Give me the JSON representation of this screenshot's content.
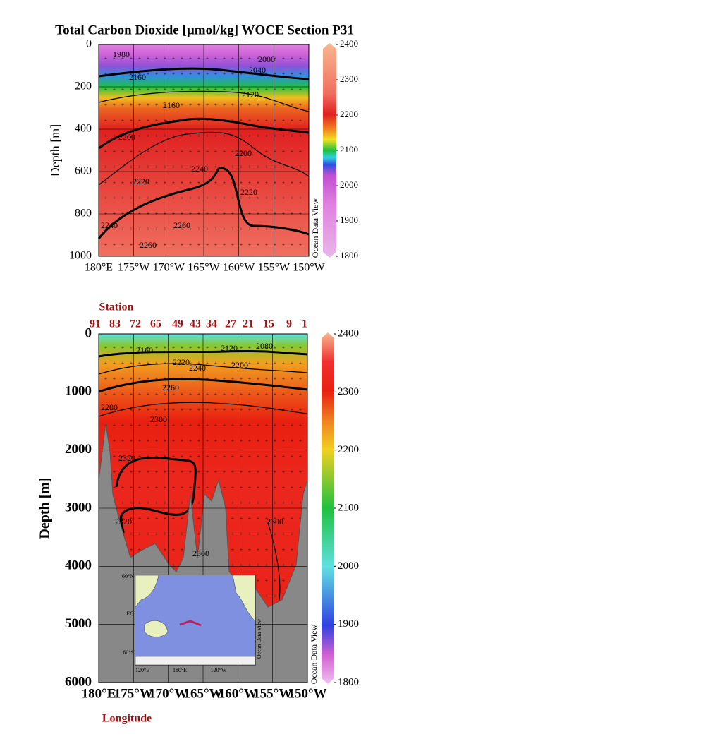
{
  "chart_data": [
    {
      "type": "section",
      "title": "Total Carbon Dioxide [µmol/kg]  WOCE Section P31",
      "ylabel": "Depth [m]",
      "xlim": [
        180,
        210
      ],
      "xticks": [
        {
          "value": 180,
          "label": "180°E"
        },
        {
          "value": 185,
          "label": "175°W"
        },
        {
          "value": 190,
          "label": "170°W"
        },
        {
          "value": 195,
          "label": "165°W"
        },
        {
          "value": 200,
          "label": "160°W"
        },
        {
          "value": 205,
          "label": "155°W"
        },
        {
          "value": 210,
          "label": "150°W"
        }
      ],
      "ylim": [
        0,
        1000
      ],
      "y_inverted": true,
      "yticks": [
        0,
        200,
        400,
        600,
        800,
        1000
      ],
      "clim": [
        1800,
        2400
      ],
      "cticks": [
        1800,
        1900,
        2000,
        2100,
        2200,
        2300,
        2400
      ],
      "colormap": [
        {
          "value": 1800,
          "color": "#e8b8e8"
        },
        {
          "value": 1950,
          "color": "#e080e0"
        },
        {
          "value": 2030,
          "color": "#c050d0"
        },
        {
          "value": 2060,
          "color": "#3050e0"
        },
        {
          "value": 2080,
          "color": "#30d0e0"
        },
        {
          "value": 2100,
          "color": "#20c040"
        },
        {
          "value": 2130,
          "color": "#f0e020"
        },
        {
          "value": 2160,
          "color": "#f08020"
        },
        {
          "value": 2200,
          "color": "#e02020"
        },
        {
          "value": 2260,
          "color": "#f07060"
        },
        {
          "value": 2400,
          "color": "#f8b890"
        }
      ],
      "profile": {
        "depth": [
          0,
          50,
          100,
          150,
          200,
          250,
          300,
          400,
          600,
          800,
          1000
        ],
        "value": [
          1950,
          2000,
          2040,
          2070,
          2100,
          2140,
          2170,
          2200,
          2220,
          2240,
          2260
        ]
      },
      "contour_labels": [
        "1980",
        "2000",
        "2040",
        "2160",
        "2120",
        "2160",
        "2200",
        "2200",
        "2220",
        "2240",
        "2220",
        "2240",
        "2260",
        "2260"
      ],
      "watermark": "Ocean Data View"
    },
    {
      "type": "section",
      "ylabel": "Depth [m]",
      "xlabel": "Longitude",
      "station_title": "Station",
      "stations": [
        "91",
        "83",
        "72",
        "65",
        "49",
        "43",
        "34",
        "27",
        "21",
        "15",
        "9",
        "1"
      ],
      "xlim": [
        180,
        210
      ],
      "xticks": [
        {
          "value": 180,
          "label": "180°E"
        },
        {
          "value": 185,
          "label": "175°W"
        },
        {
          "value": 190,
          "label": "170°W"
        },
        {
          "value": 195,
          "label": "165°W"
        },
        {
          "value": 200,
          "label": "160°W"
        },
        {
          "value": 205,
          "label": "155°W"
        },
        {
          "value": 210,
          "label": "150°W"
        }
      ],
      "ylim": [
        0,
        6000
      ],
      "y_inverted": true,
      "yticks": [
        0,
        1000,
        2000,
        3000,
        4000,
        5000,
        6000
      ],
      "clim": [
        1800,
        2400
      ],
      "cticks": [
        1800,
        1900,
        2000,
        2100,
        2200,
        2300,
        2400
      ],
      "colormap": [
        {
          "value": 1800,
          "color": "#f0c0f0"
        },
        {
          "value": 1850,
          "color": "#d060d0"
        },
        {
          "value": 1900,
          "color": "#3040e0"
        },
        {
          "value": 2000,
          "color": "#60e0e0"
        },
        {
          "value": 2100,
          "color": "#20c040"
        },
        {
          "value": 2200,
          "color": "#f0d020"
        },
        {
          "value": 2250,
          "color": "#f08020"
        },
        {
          "value": 2300,
          "color": "#e82010"
        },
        {
          "value": 2350,
          "color": "#f03030"
        },
        {
          "value": 2400,
          "color": "#f8b890"
        }
      ],
      "profile": {
        "depth": [
          0,
          200,
          500,
          1000,
          1500,
          2500,
          6000
        ],
        "value": [
          2000,
          2150,
          2230,
          2270,
          2300,
          2320,
          2310
        ]
      },
      "contour_labels": [
        "2160",
        "2120",
        "2080",
        "2220",
        "2240",
        "2200",
        "2260",
        "2280",
        "2300",
        "2320",
        "2320",
        "2300",
        "2300"
      ],
      "watermark": "Ocean Data View",
      "inset_labels": [
        "60°N",
        "EQ",
        "60°S",
        "120°E",
        "180°E",
        "120°W"
      ],
      "inset_watermark": "Ocean Data View"
    }
  ]
}
